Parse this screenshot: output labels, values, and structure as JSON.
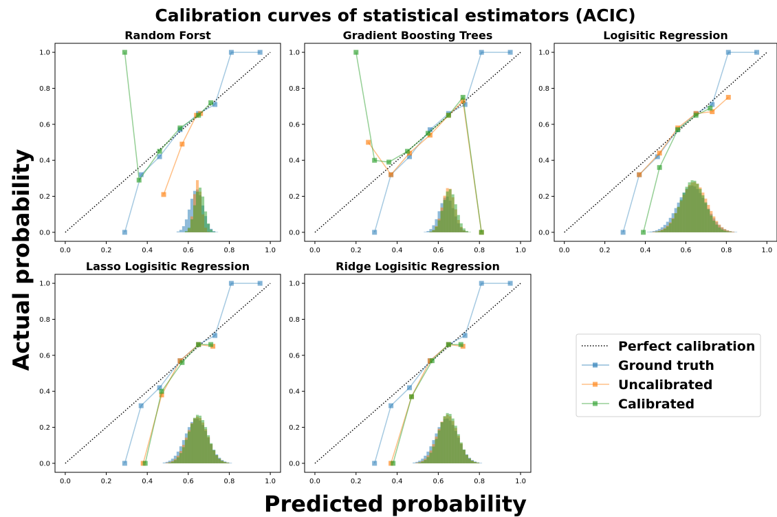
{
  "figure": {
    "title": "Calibration curves of statistical estimators (ACIC)",
    "xlabel": "Predicted probability",
    "ylabel": "Actual probability"
  },
  "colors": {
    "ground_truth": "#1f77b4",
    "uncalibrated": "#ff7f0e",
    "calibrated": "#2ca02c",
    "perfect": "#000000"
  },
  "legend": {
    "placement": "lower-right (empty sixth panel)",
    "entries": [
      {
        "key": "perfect",
        "label": "Perfect calibration",
        "style": "dotted"
      },
      {
        "key": "ground_truth",
        "label": "Ground truth",
        "style": "line-square"
      },
      {
        "key": "uncalibrated",
        "label": "Uncalibrated",
        "style": "line-square"
      },
      {
        "key": "calibrated",
        "label": "Calibrated",
        "style": "line-square"
      }
    ]
  },
  "chart_data": [
    {
      "type": "line",
      "title": "Random Forst",
      "xlim": [
        -0.05,
        1.05
      ],
      "ylim": [
        -0.05,
        1.05
      ],
      "xticks": [
        0.0,
        0.2,
        0.4,
        0.6,
        0.8,
        1.0
      ],
      "yticks": [
        0.0,
        0.2,
        0.4,
        0.6,
        0.8,
        1.0
      ],
      "xtick_labels": [
        "0.0",
        "0.2",
        "0.4",
        "0.6",
        "0.8",
        "1.0"
      ],
      "ytick_labels": [
        "0.0",
        "0.2",
        "0.4",
        "0.6",
        "0.8",
        "1.0"
      ],
      "series": [
        {
          "key": "perfect",
          "name": "Perfect calibration",
          "x": [
            0,
            1
          ],
          "y": [
            0,
            1
          ]
        },
        {
          "key": "ground_truth",
          "name": "Ground truth",
          "x": [
            0.29,
            0.37,
            0.46,
            0.56,
            0.65,
            0.73,
            0.81,
            0.95
          ],
          "y": [
            0.0,
            0.32,
            0.42,
            0.57,
            0.66,
            0.71,
            1.0,
            1.0
          ]
        },
        {
          "key": "uncalibrated",
          "name": "Uncalibrated",
          "x": [
            0.48,
            0.57,
            0.64,
            0.66
          ],
          "y": [
            0.21,
            0.49,
            0.65,
            0.66
          ]
        },
        {
          "key": "calibrated",
          "name": "Calibrated",
          "x": [
            0.29,
            0.36,
            0.46,
            0.56,
            0.65,
            0.71
          ],
          "y": [
            1.0,
            0.29,
            0.45,
            0.58,
            0.65,
            0.72
          ]
        }
      ],
      "histograms": [
        {
          "key": "ground_truth",
          "center": 0.64,
          "spread": 0.032,
          "peak": 0.24
        },
        {
          "key": "uncalibrated",
          "center": 0.645,
          "spread": 0.018,
          "peak": 0.29
        },
        {
          "key": "calibrated",
          "center": 0.655,
          "spread": 0.024,
          "peak": 0.25
        }
      ]
    },
    {
      "type": "line",
      "title": "Gradient Boosting Trees",
      "xlim": [
        -0.05,
        1.05
      ],
      "ylim": [
        -0.05,
        1.05
      ],
      "xticks": [
        0.0,
        0.2,
        0.4,
        0.6,
        0.8,
        1.0
      ],
      "yticks": [
        0.0,
        0.2,
        0.4,
        0.6,
        0.8,
        1.0
      ],
      "xtick_labels": [
        "0.0",
        "0.2",
        "0.4",
        "0.6",
        "0.8",
        "1.0"
      ],
      "ytick_labels": [
        "0.0",
        "0.2",
        "0.4",
        "0.6",
        "0.8",
        "1.0"
      ],
      "series": [
        {
          "key": "perfect",
          "name": "Perfect calibration",
          "x": [
            0,
            1
          ],
          "y": [
            0,
            1
          ]
        },
        {
          "key": "ground_truth",
          "name": "Ground truth",
          "x": [
            0.29,
            0.37,
            0.46,
            0.56,
            0.65,
            0.73,
            0.81,
            0.95
          ],
          "y": [
            0.0,
            0.32,
            0.42,
            0.57,
            0.66,
            0.71,
            1.0,
            1.0
          ]
        },
        {
          "key": "uncalibrated",
          "name": "Uncalibrated",
          "x": [
            0.26,
            0.37,
            0.46,
            0.56,
            0.65,
            0.72,
            0.81
          ],
          "y": [
            0.5,
            0.32,
            0.44,
            0.54,
            0.65,
            0.73,
            0.0
          ]
        },
        {
          "key": "calibrated",
          "name": "Calibrated",
          "x": [
            0.2,
            0.29,
            0.36,
            0.45,
            0.55,
            0.65,
            0.72,
            0.81
          ],
          "y": [
            1.0,
            0.4,
            0.39,
            0.45,
            0.55,
            0.65,
            0.75,
            0.0
          ]
        }
      ],
      "histograms": [
        {
          "key": "ground_truth",
          "center": 0.64,
          "spread": 0.035,
          "peak": 0.2
        },
        {
          "key": "uncalibrated",
          "center": 0.65,
          "spread": 0.03,
          "peak": 0.25
        },
        {
          "key": "calibrated",
          "center": 0.655,
          "spread": 0.032,
          "peak": 0.24
        }
      ]
    },
    {
      "type": "line",
      "title": "Logisitic Regression",
      "xlim": [
        -0.05,
        1.05
      ],
      "ylim": [
        -0.05,
        1.05
      ],
      "xticks": [
        0.0,
        0.2,
        0.4,
        0.6,
        0.8,
        1.0
      ],
      "yticks": [
        0.0,
        0.2,
        0.4,
        0.6,
        0.8,
        1.0
      ],
      "xtick_labels": [
        "0.0",
        "0.2",
        "0.4",
        "0.6",
        "0.8",
        "1.0"
      ],
      "ytick_labels": [
        "0.0",
        "0.2",
        "0.4",
        "0.6",
        "0.8",
        "1.0"
      ],
      "series": [
        {
          "key": "perfect",
          "name": "Perfect calibration",
          "x": [
            0,
            1
          ],
          "y": [
            0,
            1
          ]
        },
        {
          "key": "ground_truth",
          "name": "Ground truth",
          "x": [
            0.29,
            0.37,
            0.46,
            0.56,
            0.65,
            0.73,
            0.81,
            0.95
          ],
          "y": [
            0.0,
            0.32,
            0.42,
            0.57,
            0.66,
            0.71,
            1.0,
            1.0
          ]
        },
        {
          "key": "uncalibrated",
          "name": "Uncalibrated",
          "x": [
            0.37,
            0.47,
            0.56,
            0.65,
            0.73,
            0.81
          ],
          "y": [
            0.32,
            0.44,
            0.58,
            0.66,
            0.67,
            0.75
          ]
        },
        {
          "key": "calibrated",
          "name": "Calibrated",
          "x": [
            0.39,
            0.47,
            0.56,
            0.65,
            0.72
          ],
          "y": [
            0.0,
            0.36,
            0.57,
            0.65,
            0.69
          ]
        }
      ],
      "histograms": [
        {
          "key": "ground_truth",
          "center": 0.63,
          "spread": 0.07,
          "peak": 0.26
        },
        {
          "key": "uncalibrated",
          "center": 0.64,
          "spread": 0.065,
          "peak": 0.28
        },
        {
          "key": "calibrated",
          "center": 0.635,
          "spread": 0.06,
          "peak": 0.29
        }
      ]
    },
    {
      "type": "line",
      "title": "Lasso Logisitic Regression",
      "xlim": [
        -0.05,
        1.05
      ],
      "ylim": [
        -0.05,
        1.05
      ],
      "xticks": [
        0.0,
        0.2,
        0.4,
        0.6,
        0.8,
        1.0
      ],
      "yticks": [
        0.0,
        0.2,
        0.4,
        0.6,
        0.8,
        1.0
      ],
      "xtick_labels": [
        "0.0",
        "0.2",
        "0.4",
        "0.6",
        "0.8",
        "1.0"
      ],
      "ytick_labels": [
        "0.0",
        "0.2",
        "0.4",
        "0.6",
        "0.8",
        "1.0"
      ],
      "series": [
        {
          "key": "perfect",
          "name": "Perfect calibration",
          "x": [
            0,
            1
          ],
          "y": [
            0,
            1
          ]
        },
        {
          "key": "ground_truth",
          "name": "Ground truth",
          "x": [
            0.29,
            0.37,
            0.46,
            0.56,
            0.65,
            0.73,
            0.81,
            0.95
          ],
          "y": [
            0.0,
            0.32,
            0.42,
            0.57,
            0.66,
            0.71,
            1.0,
            1.0
          ]
        },
        {
          "key": "uncalibrated",
          "name": "Uncalibrated",
          "x": [
            0.38,
            0.47,
            0.56,
            0.65,
            0.72
          ],
          "y": [
            0.0,
            0.38,
            0.57,
            0.66,
            0.65
          ]
        },
        {
          "key": "calibrated",
          "name": "Calibrated",
          "x": [
            0.39,
            0.47,
            0.57,
            0.65,
            0.71
          ],
          "y": [
            0.0,
            0.4,
            0.56,
            0.66,
            0.66
          ]
        }
      ],
      "histograms": [
        {
          "key": "ground_truth",
          "center": 0.64,
          "spread": 0.055,
          "peak": 0.25
        },
        {
          "key": "uncalibrated",
          "center": 0.645,
          "spread": 0.05,
          "peak": 0.26
        },
        {
          "key": "calibrated",
          "center": 0.648,
          "spread": 0.048,
          "peak": 0.27
        }
      ]
    },
    {
      "type": "line",
      "title": "Ridge Logisitic Regression",
      "xlim": [
        -0.05,
        1.05
      ],
      "ylim": [
        -0.05,
        1.05
      ],
      "xticks": [
        0.0,
        0.2,
        0.4,
        0.6,
        0.8,
        1.0
      ],
      "yticks": [
        0.0,
        0.2,
        0.4,
        0.6,
        0.8,
        1.0
      ],
      "xtick_labels": [
        "0.0",
        "0.2",
        "0.4",
        "0.6",
        "0.8",
        "1.0"
      ],
      "ytick_labels": [
        "0.0",
        "0.2",
        "0.4",
        "0.6",
        "0.8",
        "1.0"
      ],
      "series": [
        {
          "key": "perfect",
          "name": "Perfect calibration",
          "x": [
            0,
            1
          ],
          "y": [
            0,
            1
          ]
        },
        {
          "key": "ground_truth",
          "name": "Ground truth",
          "x": [
            0.29,
            0.37,
            0.46,
            0.56,
            0.65,
            0.73,
            0.81,
            0.95
          ],
          "y": [
            0.0,
            0.32,
            0.42,
            0.57,
            0.66,
            0.71,
            1.0,
            1.0
          ]
        },
        {
          "key": "uncalibrated",
          "name": "Uncalibrated",
          "x": [
            0.37,
            0.47,
            0.56,
            0.65,
            0.72
          ],
          "y": [
            0.0,
            0.37,
            0.57,
            0.66,
            0.65
          ]
        },
        {
          "key": "calibrated",
          "name": "Calibrated",
          "x": [
            0.38,
            0.47,
            0.57,
            0.65,
            0.71
          ],
          "y": [
            0.0,
            0.37,
            0.57,
            0.66,
            0.66
          ]
        }
      ],
      "histograms": [
        {
          "key": "ground_truth",
          "center": 0.64,
          "spread": 0.055,
          "peak": 0.25
        },
        {
          "key": "uncalibrated",
          "center": 0.645,
          "spread": 0.05,
          "peak": 0.27
        },
        {
          "key": "calibrated",
          "center": 0.648,
          "spread": 0.048,
          "peak": 0.28
        }
      ]
    }
  ]
}
